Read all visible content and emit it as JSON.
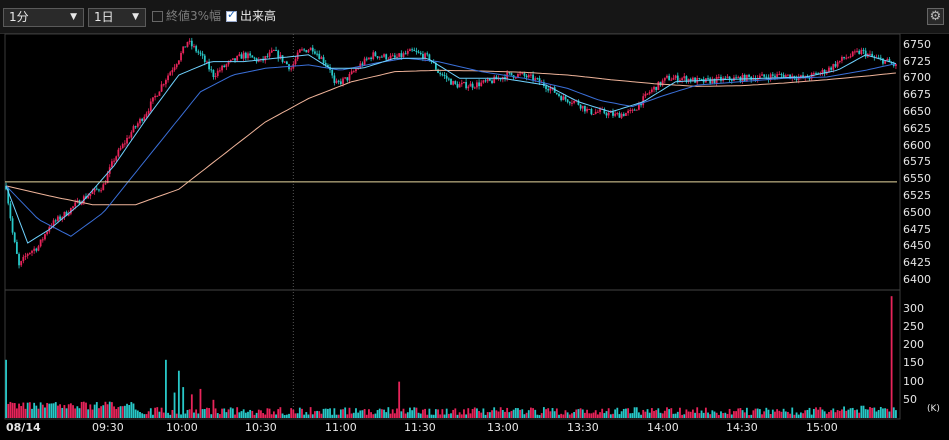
{
  "toolbar": {
    "interval": "1分",
    "period": "1日",
    "range_label": "終値3%幅",
    "range_checked": false,
    "volume_label": "出来高",
    "volume_checked": true,
    "settings_icon": "gear-icon"
  },
  "colors": {
    "up": "#e8245a",
    "down": "#28c8c8",
    "ma_short": "#6fd2ff",
    "ma_mid": "#3a6fd8",
    "ma_long": "#f0b49a",
    "ref_line": "#e8d8a0"
  },
  "chart_data": [
    {
      "type": "candlestick",
      "ylim": [
        6388,
        6766
      ],
      "y_ticks": [
        6750,
        6725,
        6700,
        6675,
        6650,
        6625,
        6600,
        6575,
        6550,
        6525,
        6500,
        6475,
        6450,
        6425,
        6400
      ],
      "x_ticks": [
        "08/14",
        "09:30",
        "10:00",
        "10:30",
        "11:00",
        "11:30",
        "13:00",
        "13:30",
        "14:00",
        "14:30",
        "15:00"
      ],
      "reference_price": 6546,
      "close_path": [
        [
          0,
          6540
        ],
        [
          3,
          6470
        ],
        [
          6,
          6420
        ],
        [
          10,
          6440
        ],
        [
          15,
          6450
        ],
        [
          20,
          6480
        ],
        [
          28,
          6500
        ],
        [
          35,
          6520
        ],
        [
          45,
          6540
        ],
        [
          50,
          6580
        ],
        [
          58,
          6620
        ],
        [
          65,
          6650
        ],
        [
          72,
          6690
        ],
        [
          80,
          6730
        ],
        [
          84,
          6755
        ],
        [
          90,
          6735
        ],
        [
          96,
          6705
        ],
        [
          102,
          6720
        ],
        [
          110,
          6735
        ],
        [
          118,
          6725
        ],
        [
          124,
          6740
        ],
        [
          132,
          6715
        ],
        [
          136,
          6740
        ],
        [
          142,
          6745
        ],
        [
          150,
          6715
        ],
        [
          152,
          6690
        ],
        [
          158,
          6700
        ],
        [
          164,
          6720
        ],
        [
          170,
          6735
        ],
        [
          180,
          6730
        ],
        [
          188,
          6740
        ],
        [
          196,
          6730
        ],
        [
          200,
          6710
        ],
        [
          208,
          6690
        ],
        [
          216,
          6690
        ],
        [
          224,
          6695
        ],
        [
          232,
          6705
        ],
        [
          238,
          6705
        ],
        [
          244,
          6700
        ],
        [
          252,
          6685
        ],
        [
          258,
          6670
        ],
        [
          264,
          6665
        ],
        [
          270,
          6650
        ],
        [
          276,
          6650
        ],
        [
          282,
          6645
        ],
        [
          290,
          6650
        ],
        [
          298,
          6680
        ],
        [
          306,
          6700
        ],
        [
          314,
          6700
        ],
        [
          322,
          6695
        ],
        [
          330,
          6698
        ],
        [
          340,
          6700
        ],
        [
          350,
          6702
        ],
        [
          360,
          6705
        ],
        [
          370,
          6700
        ],
        [
          380,
          6712
        ],
        [
          388,
          6730
        ],
        [
          396,
          6740
        ],
        [
          402,
          6730
        ],
        [
          408,
          6725
        ],
        [
          412,
          6718
        ]
      ],
      "ma_short_path": [
        [
          0,
          6540
        ],
        [
          10,
          6455
        ],
        [
          20,
          6475
        ],
        [
          35,
          6515
        ],
        [
          50,
          6570
        ],
        [
          65,
          6640
        ],
        [
          80,
          6705
        ],
        [
          95,
          6725
        ],
        [
          110,
          6725
        ],
        [
          125,
          6730
        ],
        [
          140,
          6735
        ],
        [
          150,
          6715
        ],
        [
          165,
          6715
        ],
        [
          180,
          6730
        ],
        [
          195,
          6730
        ],
        [
          210,
          6700
        ],
        [
          230,
          6700
        ],
        [
          250,
          6690
        ],
        [
          265,
          6665
        ],
        [
          280,
          6650
        ],
        [
          295,
          6665
        ],
        [
          310,
          6695
        ],
        [
          330,
          6698
        ],
        [
          350,
          6700
        ],
        [
          370,
          6702
        ],
        [
          385,
          6712
        ],
        [
          398,
          6735
        ],
        [
          412,
          6722
        ]
      ],
      "ma_mid_path": [
        [
          0,
          6540
        ],
        [
          15,
          6490
        ],
        [
          30,
          6465
        ],
        [
          45,
          6500
        ],
        [
          60,
          6560
        ],
        [
          75,
          6620
        ],
        [
          90,
          6680
        ],
        [
          105,
          6705
        ],
        [
          120,
          6715
        ],
        [
          140,
          6720
        ],
        [
          155,
          6712
        ],
        [
          170,
          6722
        ],
        [
          185,
          6730
        ],
        [
          200,
          6725
        ],
        [
          220,
          6710
        ],
        [
          240,
          6700
        ],
        [
          260,
          6685
        ],
        [
          275,
          6667
        ],
        [
          290,
          6658
        ],
        [
          305,
          6675
        ],
        [
          320,
          6690
        ],
        [
          340,
          6695
        ],
        [
          360,
          6700
        ],
        [
          380,
          6702
        ],
        [
          398,
          6712
        ],
        [
          412,
          6722
        ]
      ],
      "ma_long_path": [
        [
          0,
          6540
        ],
        [
          20,
          6525
        ],
        [
          40,
          6512
        ],
        [
          60,
          6512
        ],
        [
          80,
          6535
        ],
        [
          100,
          6585
        ],
        [
          120,
          6635
        ],
        [
          140,
          6670
        ],
        [
          160,
          6695
        ],
        [
          180,
          6710
        ],
        [
          200,
          6712
        ],
        [
          220,
          6711
        ],
        [
          240,
          6709
        ],
        [
          260,
          6705
        ],
        [
          280,
          6698
        ],
        [
          300,
          6692
        ],
        [
          320,
          6688
        ],
        [
          340,
          6689
        ],
        [
          360,
          6693
        ],
        [
          380,
          6698
        ],
        [
          400,
          6704
        ],
        [
          412,
          6708
        ]
      ]
    },
    {
      "type": "bar",
      "ylabel": "(K)",
      "ylim": [
        0,
        330
      ],
      "y_ticks": [
        300,
        250,
        200,
        150,
        100,
        50
      ],
      "volume_spikes": [
        [
          0,
          160
        ],
        [
          74,
          160
        ],
        [
          78,
          70
        ],
        [
          80,
          130
        ],
        [
          82,
          85
        ],
        [
          86,
          65
        ],
        [
          90,
          80
        ],
        [
          96,
          50
        ],
        [
          182,
          100
        ],
        [
          410,
          335
        ]
      ]
    }
  ],
  "y_labels": [
    "6750",
    "6725",
    "6700",
    "6675",
    "6650",
    "6625",
    "6600",
    "6575",
    "6550",
    "6525",
    "6500",
    "6475",
    "6450",
    "6425",
    "6400"
  ],
  "vol_labels": [
    "300",
    "250",
    "200",
    "150",
    "100",
    "50"
  ],
  "vol_unit": "(K)",
  "x_labels": [
    "08/14",
    "09:30",
    "10:00",
    "10:30",
    "11:00",
    "11:30",
    "13:00",
    "13:30",
    "14:00",
    "14:30",
    "15:00"
  ]
}
